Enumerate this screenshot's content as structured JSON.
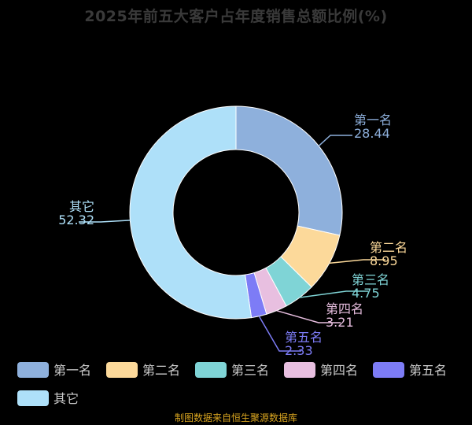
{
  "title": "2025年前五大客户占年度销售总额比例(%)",
  "source": "制图数据来自恒生聚源数据库",
  "colors": {
    "background": "#000000",
    "title": "#3a3a3a",
    "source": "#d9a520",
    "legend_text": "#cccccc"
  },
  "chart_data": {
    "type": "pie",
    "variant": "donut",
    "title": "2025年前五大客户占年度销售总额比例(%)",
    "legend_position": "bottom",
    "series": [
      {
        "name": "第一名",
        "value": 28.44,
        "color": "#8eb0dc"
      },
      {
        "name": "第二名",
        "value": 8.95,
        "color": "#fcd99a"
      },
      {
        "name": "第三名",
        "value": 4.75,
        "color": "#7fd4d6"
      },
      {
        "name": "第四名",
        "value": 3.21,
        "color": "#e8bfe0"
      },
      {
        "name": "第五名",
        "value": 2.33,
        "color": "#7d7cf6"
      },
      {
        "name": "其它",
        "value": 52.32,
        "color": "#aee0f9"
      }
    ]
  }
}
